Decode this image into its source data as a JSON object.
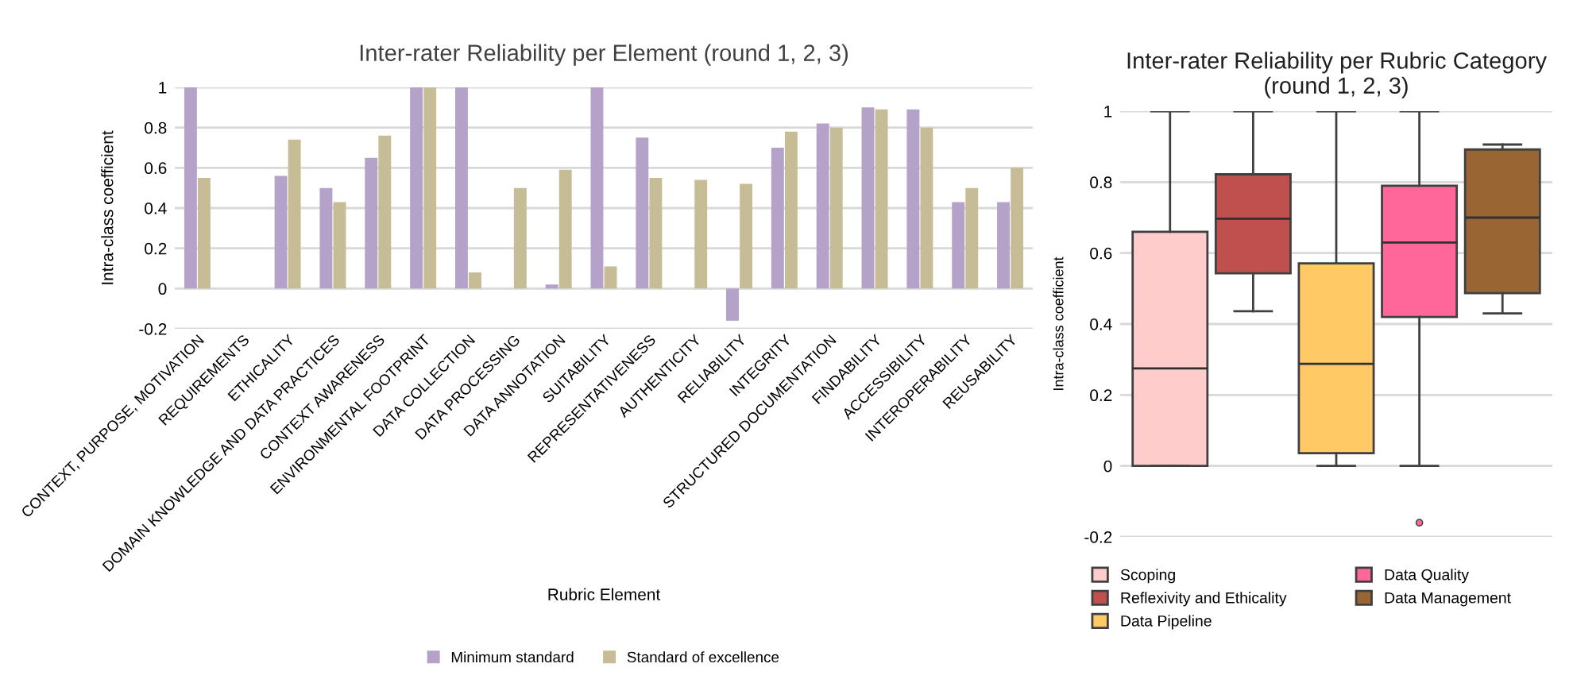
{
  "chart_data": [
    {
      "type": "bar",
      "title": "Inter-rater Reliability per Element (round 1, 2, 3)",
      "xlabel": "Rubric Element",
      "ylabel": "Intra-class coefficient",
      "categories": [
        "CONTEXT, PURPOSE, MOTIVATION",
        "REQUIREMENTS",
        "ETHICALITY",
        "DOMAIN KNOWLEDGE AND DATA PRACTICES",
        "CONTEXT AWARENESS",
        "ENVIRONMENTAL FOOTPRINT",
        "DATA COLLECTION",
        "DATA PROCESSING",
        "DATA ANNOTATION",
        "SUITABILITY",
        "REPRESENTATIVENESS",
        "AUTHENTICITY",
        "RELIABILITY",
        "INTEGRITY",
        "STRUCTURED DOCUMENTATION",
        "FINDABILITY",
        "ACCESSIBILITY",
        "INTEROPERABILITY",
        "REUSABILITY"
      ],
      "series": [
        {
          "name": "Minimum standard",
          "color": "#b4a2c9",
          "values": [
            1,
            null,
            0.56,
            0.5,
            0.65,
            1,
            1,
            null,
            0.02,
            1,
            0.75,
            null,
            -0.16,
            0.7,
            0.82,
            0.9,
            0.89,
            0.43,
            0.43
          ]
        },
        {
          "name": "Standard of excellence",
          "color": "#c6bd96",
          "values": [
            0.55,
            null,
            0.74,
            0.43,
            0.76,
            1,
            0.08,
            0.5,
            0.59,
            0.11,
            0.55,
            0.54,
            0.52,
            0.78,
            0.8,
            0.89,
            0.8,
            0.5,
            0.6
          ]
        }
      ],
      "ylim": [
        -0.2,
        1
      ],
      "yticks": [
        -0.2,
        0,
        0.2,
        0.4,
        0.6,
        0.8,
        1
      ],
      "grid": "y",
      "legend": "bottom"
    },
    {
      "type": "box",
      "title": "Inter-rater Reliability per Rubric Category\n(round 1, 2, 3)",
      "ylabel": "Intra-class coefficient",
      "categories": [
        null,
        null,
        null,
        null,
        null
      ],
      "series": [
        {
          "name": "Scoping",
          "color": "#ffcccc",
          "boxes": [
            {
              "low": 0,
              "q1": 0,
              "median": 0.275,
              "q3": 0.66,
              "high": 1
            },
            null,
            null,
            null,
            null
          ]
        },
        {
          "name": "Reflexivity and Ethicality",
          "color": "#c0504d",
          "boxes": [
            null,
            {
              "low": 0.436,
              "q1": 0.543,
              "median": 0.697,
              "q3": 0.822,
              "high": 1
            },
            null,
            null,
            null
          ]
        },
        {
          "name": "Data Pipeline",
          "color": "#ffc966",
          "boxes": [
            null,
            null,
            {
              "low": 0,
              "q1": 0.036,
              "median": 0.288,
              "q3": 0.571,
              "high": 1
            },
            null,
            null
          ]
        },
        {
          "name": "Data Quality",
          "color": "#ff6699",
          "boxes": [
            null,
            null,
            null,
            {
              "low": 0,
              "q1": 0.42,
              "median": 0.63,
              "q3": 0.79,
              "high": 1,
              "outliers": [
                -0.16
              ]
            },
            null
          ]
        },
        {
          "name": "Data Management",
          "color": "#996633",
          "boxes": [
            null,
            null,
            null,
            null,
            {
              "low": 0.43,
              "q1": 0.487,
              "median": 0.7,
              "q3": 0.892,
              "high": 0.906
            }
          ]
        }
      ],
      "ylim": [
        -0.2,
        1
      ],
      "yticks": [
        -0.2,
        0,
        0.2,
        0.4,
        0.6,
        0.8,
        1
      ],
      "grid": "y",
      "legend": "bottom"
    }
  ]
}
